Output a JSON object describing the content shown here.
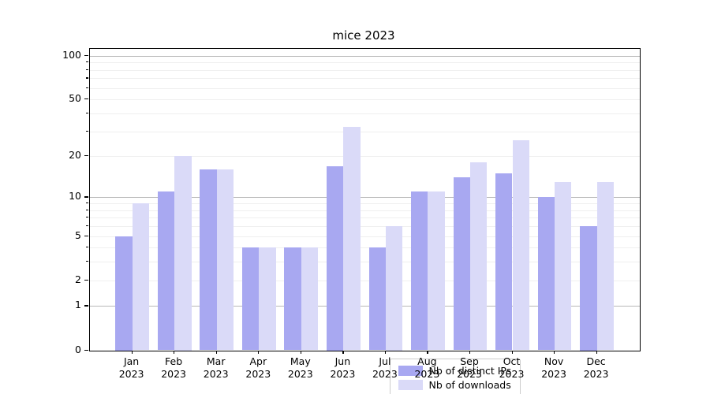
{
  "title": "mice 2023",
  "chart_data": {
    "type": "bar",
    "title": "mice 2023",
    "categories": [
      "Jan",
      "Feb",
      "Mar",
      "Apr",
      "May",
      "Jun",
      "Jul",
      "Aug",
      "Sep",
      "Oct",
      "Nov",
      "Dec"
    ],
    "year": "2023",
    "series": [
      {
        "name": "Nb of distinct IPs",
        "color": "#a8a8f1",
        "values": [
          5,
          11,
          16,
          4,
          4,
          17,
          4,
          11,
          14,
          15,
          10,
          6
        ]
      },
      {
        "name": "Nb of downloads",
        "color": "#dadaf8",
        "values": [
          9,
          20,
          16,
          4,
          4,
          32,
          6,
          11,
          18,
          26,
          13,
          13
        ]
      }
    ],
    "xlabel": "",
    "ylabel": "",
    "yscale": "log1p",
    "ylim": [
      0,
      112
    ],
    "ytick_labels": [
      "100",
      "50",
      "20",
      "10",
      "5",
      "2",
      "1",
      "0"
    ],
    "ytick_values": [
      100,
      50,
      20,
      10,
      5,
      2,
      1,
      0
    ],
    "grid_major": [
      1,
      10,
      100
    ],
    "grid_minor": [
      2,
      3,
      4,
      5,
      6,
      7,
      8,
      9,
      20,
      30,
      40,
      50,
      60,
      70,
      80,
      90
    ],
    "legend_position": "lower center",
    "grid_on": true
  },
  "colors": {
    "series_ips": "#a8a8f1",
    "series_downloads": "#dadaf8",
    "grid_major": "#b8b8b8",
    "grid_minor": "#efefef",
    "spine": "#000000"
  }
}
